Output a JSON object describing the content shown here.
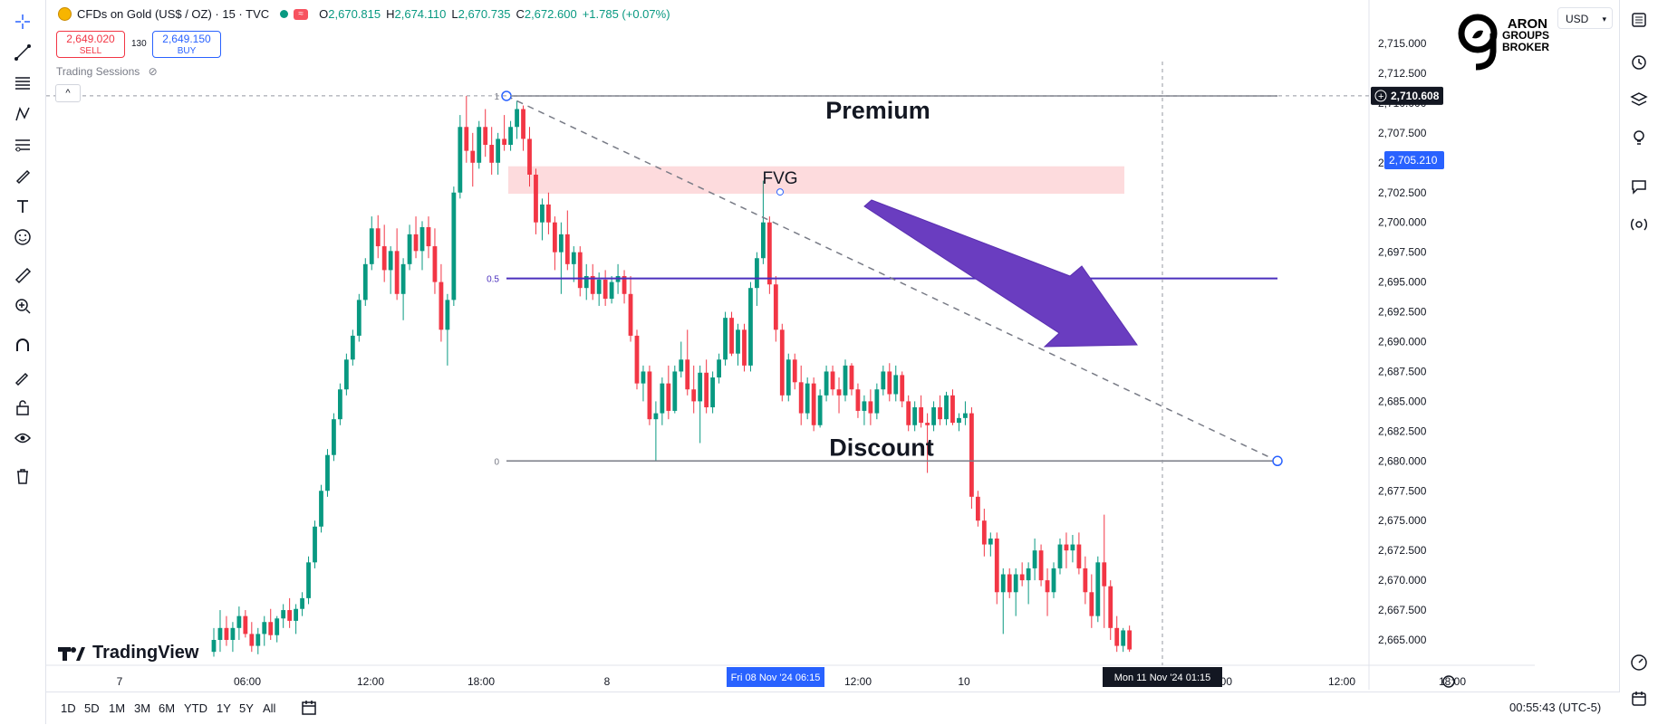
{
  "header": {
    "symbol": "CFDs on Gold (US$ / OZ) · 15 · TVC",
    "open_label": "O",
    "open": "2,670.815",
    "high_label": "H",
    "high": "2,674.110",
    "low_label": "L",
    "low": "2,670.735",
    "close_label": "C",
    "close": "2,672.600",
    "change": "+1.785 (+0.07%)",
    "sell_price": "2,649.020",
    "sell_label": "SELL",
    "spread": "130",
    "buy_price": "2,649.150",
    "buy_label": "BUY",
    "sessions_label": "Trading Sessions",
    "collapse": "^"
  },
  "branding": {
    "logo_line1": "ARON",
    "logo_line2": "GROUPS",
    "logo_line3": "BROKER",
    "tradingview": "TradingView"
  },
  "currency": "USD",
  "chart_data": {
    "type": "candlestick",
    "ylim": [
      2663.5,
      2717.5
    ],
    "y_ticks": [
      "2,715.000",
      "2,712.500",
      "2,710.000",
      "2,707.500",
      "2,705.000",
      "2,702.500",
      "2,700.000",
      "2,697.500",
      "2,695.000",
      "2,692.500",
      "2,690.000",
      "2,687.500",
      "2,685.000",
      "2,682.500",
      "2,680.000",
      "2,677.500",
      "2,675.000",
      "2,672.500",
      "2,670.000",
      "2,667.500",
      "2,665.000"
    ],
    "x_ticks": [
      "7",
      "06:00",
      "12:00",
      "18:00",
      "8",
      "12:00",
      "10",
      "06:00",
      "12:00",
      "18:00"
    ],
    "crosshair_x_label": "Fri 08 Nov '24   06:15",
    "crosshair_x_label2": "Mon 11 Nov '24   01:15",
    "price_line_label": "2,710.608",
    "current_price_label": "2,705.210",
    "fib_levels": [
      {
        "level": 1,
        "label": "1",
        "price": 2710.6
      },
      {
        "level": 0.5,
        "label": "0.5",
        "price": 2695.3
      },
      {
        "level": 0,
        "label": "0",
        "price": 2680.0
      }
    ],
    "fvg": {
      "label": "FVG",
      "top": 2704.7,
      "bottom": 2702.4
    },
    "zone_labels": {
      "premium": "Premium",
      "discount": "Discount"
    },
    "candles": [
      [
        2664,
        2666,
        2663.6,
        2665
      ],
      [
        2665,
        2667.5,
        2664,
        2666
      ],
      [
        2666,
        2667,
        2664.5,
        2665
      ],
      [
        2665,
        2666.5,
        2664,
        2666
      ],
      [
        2666,
        2667.8,
        2665,
        2667
      ],
      [
        2667,
        2667.5,
        2665.2,
        2665.5
      ],
      [
        2665.5,
        2666.5,
        2664,
        2664.5
      ],
      [
        2664.5,
        2666,
        2663.8,
        2665.5
      ],
      [
        2665.5,
        2667,
        2664.5,
        2666.5
      ],
      [
        2666.5,
        2667.6,
        2665,
        2665.4
      ],
      [
        2665.4,
        2667,
        2664.8,
        2666.8
      ],
      [
        2666.8,
        2668,
        2666,
        2667.5
      ],
      [
        2667.5,
        2668.5,
        2666,
        2666.6
      ],
      [
        2666.6,
        2668,
        2665.5,
        2667.6
      ],
      [
        2667.6,
        2669,
        2667,
        2668.5
      ],
      [
        2668.5,
        2672,
        2668,
        2671.5
      ],
      [
        2671.5,
        2675,
        2671,
        2674.5
      ],
      [
        2674.5,
        2678,
        2674,
        2677.5
      ],
      [
        2677.5,
        2681,
        2677,
        2680.5
      ],
      [
        2680.5,
        2684,
        2680,
        2683.5
      ],
      [
        2683.5,
        2686.5,
        2683,
        2686
      ],
      [
        2686,
        2689,
        2685.5,
        2688.5
      ],
      [
        2688.5,
        2691,
        2688,
        2690.5
      ],
      [
        2690.5,
        2694,
        2690,
        2693.5
      ],
      [
        2693.5,
        2697,
        2693,
        2696.5
      ],
      [
        2696.5,
        2700.5,
        2696,
        2699.5
      ],
      [
        2699.5,
        2700.6,
        2697,
        2698
      ],
      [
        2698,
        2699.8,
        2695,
        2696
      ],
      [
        2696,
        2698,
        2694,
        2697.6
      ],
      [
        2697.6,
        2699.5,
        2693.5,
        2694
      ],
      [
        2694,
        2697,
        2691.8,
        2696.5
      ],
      [
        2696.5,
        2699.8,
        2696,
        2699
      ],
      [
        2699,
        2700.5,
        2697,
        2697.6
      ],
      [
        2697.6,
        2700.1,
        2696,
        2699.6
      ],
      [
        2699.6,
        2700.5,
        2697,
        2698
      ],
      [
        2698,
        2699.5,
        2694,
        2695
      ],
      [
        2695,
        2696.5,
        2690,
        2691
      ],
      [
        2691,
        2694,
        2688,
        2693.5
      ],
      [
        2693.5,
        2703,
        2693,
        2702.5
      ],
      [
        2702.5,
        2709,
        2702,
        2708
      ],
      [
        2708,
        2710.6,
        2705,
        2706
      ],
      [
        2706,
        2707.5,
        2703,
        2705
      ],
      [
        2705,
        2708.5,
        2704.5,
        2708
      ],
      [
        2708,
        2709.5,
        2705.5,
        2706.5
      ],
      [
        2706.5,
        2708,
        2704,
        2705
      ],
      [
        2705,
        2707.5,
        2704,
        2707
      ],
      [
        2707,
        2709,
        2706,
        2706.5
      ],
      [
        2706.5,
        2708.5,
        2706,
        2708
      ],
      [
        2708,
        2710.2,
        2707,
        2709.5
      ],
      [
        2709.5,
        2709.8,
        2706,
        2707
      ],
      [
        2707,
        2708,
        2703,
        2704
      ],
      [
        2704,
        2704.5,
        2699,
        2700
      ],
      [
        2700,
        2702,
        2698.5,
        2701.5
      ],
      [
        2701.5,
        2702.5,
        2699,
        2700
      ],
      [
        2700,
        2700.5,
        2696,
        2697.5
      ],
      [
        2697.5,
        2700,
        2694,
        2699
      ],
      [
        2699,
        2701,
        2696,
        2696.5
      ],
      [
        2696.5,
        2698,
        2695,
        2697.5
      ],
      [
        2697.5,
        2698,
        2693.8,
        2694.5
      ],
      [
        2694.5,
        2696.5,
        2693.5,
        2695.5
      ],
      [
        2695.5,
        2696.5,
        2693.5,
        2694
      ],
      [
        2694,
        2695.8,
        2693,
        2695.2
      ],
      [
        2695.2,
        2696,
        2693,
        2693.6
      ],
      [
        2693.6,
        2695.5,
        2693.2,
        2695
      ],
      [
        2695,
        2696.5,
        2694,
        2695.5
      ],
      [
        2695.5,
        2696,
        2693.2,
        2694
      ],
      [
        2694,
        2695.5,
        2690,
        2690.5
      ],
      [
        2690.5,
        2691,
        2686,
        2686.5
      ],
      [
        2686.5,
        2688,
        2685,
        2687.5
      ],
      [
        2687.5,
        2688,
        2683,
        2683.5
      ],
      [
        2683.5,
        2685,
        2680,
        2684
      ],
      [
        2684,
        2687,
        2683,
        2686.5
      ],
      [
        2686.5,
        2688,
        2683.5,
        2684.2
      ],
      [
        2684.2,
        2688,
        2684,
        2687.5
      ],
      [
        2687.5,
        2690,
        2687,
        2688.5
      ],
      [
        2688.5,
        2691,
        2685.5,
        2686
      ],
      [
        2686,
        2688,
        2684,
        2685
      ],
      [
        2685,
        2688,
        2681.5,
        2687.4
      ],
      [
        2687.4,
        2688.5,
        2684,
        2684.5
      ],
      [
        2684.5,
        2687.5,
        2684,
        2687
      ],
      [
        2687,
        2689,
        2686.5,
        2688.5
      ],
      [
        2688.5,
        2692.5,
        2688,
        2692
      ],
      [
        2692,
        2692.5,
        2688.8,
        2689
      ],
      [
        2689,
        2691.5,
        2688,
        2691
      ],
      [
        2691,
        2691.5,
        2687.5,
        2688
      ],
      [
        2688,
        2695,
        2687.5,
        2694.5
      ],
      [
        2694.5,
        2697.5,
        2693,
        2697
      ],
      [
        2697,
        2703.5,
        2696.5,
        2700
      ],
      [
        2700,
        2700.5,
        2694,
        2694.8
      ],
      [
        2694.8,
        2695.5,
        2690,
        2691
      ],
      [
        2691,
        2691.5,
        2685,
        2685.5
      ],
      [
        2685.5,
        2689,
        2685,
        2688.5
      ],
      [
        2688.5,
        2689,
        2686,
        2686.6
      ],
      [
        2686.6,
        2688,
        2683,
        2684
      ],
      [
        2684,
        2687,
        2683.5,
        2686.5
      ],
      [
        2686.5,
        2687,
        2682.5,
        2683
      ],
      [
        2683,
        2686,
        2682.8,
        2685.5
      ],
      [
        2685.5,
        2688,
        2685,
        2687.5
      ],
      [
        2687.5,
        2688,
        2685.5,
        2686
      ],
      [
        2686,
        2687,
        2684,
        2685.5
      ],
      [
        2685.5,
        2688.5,
        2685,
        2688
      ],
      [
        2688,
        2688.2,
        2685.5,
        2686
      ],
      [
        2686,
        2686.5,
        2683.6,
        2684.2
      ],
      [
        2684.2,
        2685.5,
        2683,
        2685
      ],
      [
        2685,
        2686,
        2683,
        2684
      ],
      [
        2684,
        2686.5,
        2683.5,
        2686
      ],
      [
        2686,
        2688,
        2685.5,
        2687.5
      ],
      [
        2687.5,
        2688.2,
        2685,
        2685.6
      ],
      [
        2685.6,
        2688,
        2685,
        2687.2
      ],
      [
        2687.2,
        2687.5,
        2684.5,
        2685
      ],
      [
        2685,
        2685.5,
        2682.5,
        2683
      ],
      [
        2683,
        2685,
        2682.5,
        2684.5
      ],
      [
        2684.5,
        2685.5,
        2682.8,
        2683.2
      ],
      [
        2683.2,
        2684,
        2679,
        2683
      ],
      [
        2683,
        2685,
        2682.5,
        2684.5
      ],
      [
        2684.5,
        2685.5,
        2683,
        2683.5
      ],
      [
        2683.5,
        2685.8,
        2683,
        2685.5
      ],
      [
        2685.5,
        2686,
        2683,
        2683.2
      ],
      [
        2683.2,
        2684,
        2682.5,
        2683.6
      ],
      [
        2683.6,
        2685,
        2683,
        2684
      ],
      [
        2684,
        2684.5,
        2676,
        2677
      ],
      [
        2677,
        2677.5,
        2674.5,
        2675
      ],
      [
        2675,
        2676,
        2672,
        2673
      ],
      [
        2673,
        2674,
        2672,
        2673.5
      ],
      [
        2673.5,
        2674,
        2668,
        2669
      ],
      [
        2669,
        2671,
        2665.5,
        2670.5
      ],
      [
        2670.5,
        2671,
        2668.5,
        2669
      ],
      [
        2669,
        2671,
        2667,
        2670.5
      ],
      [
        2670.5,
        2671.5,
        2669.5,
        2670
      ],
      [
        2670,
        2671.5,
        2668,
        2671
      ],
      [
        2671,
        2673.5,
        2670,
        2672.5
      ],
      [
        2672.5,
        2673,
        2669.5,
        2670
      ],
      [
        2670,
        2671,
        2667,
        2669
      ],
      [
        2669,
        2671.5,
        2668.5,
        2671
      ],
      [
        2671,
        2673.5,
        2670.5,
        2673
      ],
      [
        2673,
        2674,
        2671,
        2672.5
      ],
      [
        2672.5,
        2673.8,
        2671.5,
        2673
      ],
      [
        2673,
        2674,
        2670.5,
        2671
      ],
      [
        2671,
        2672,
        2668,
        2669
      ],
      [
        2669,
        2670.5,
        2666,
        2667
      ],
      [
        2667,
        2672,
        2666.5,
        2671.5
      ],
      [
        2671.5,
        2675.5,
        2666,
        2669.5
      ],
      [
        2669.5,
        2670,
        2665,
        2666
      ],
      [
        2666,
        2667,
        2664,
        2664.5
      ],
      [
        2664.5,
        2666,
        2664,
        2665.8
      ],
      [
        2665.8,
        2666.2,
        2664,
        2664.2
      ]
    ]
  },
  "bottom_bar": {
    "ranges": [
      "1D",
      "5D",
      "1M",
      "3M",
      "6M",
      "YTD",
      "1Y",
      "5Y",
      "All"
    ],
    "time": "00:55:43 (UTC-5)"
  }
}
